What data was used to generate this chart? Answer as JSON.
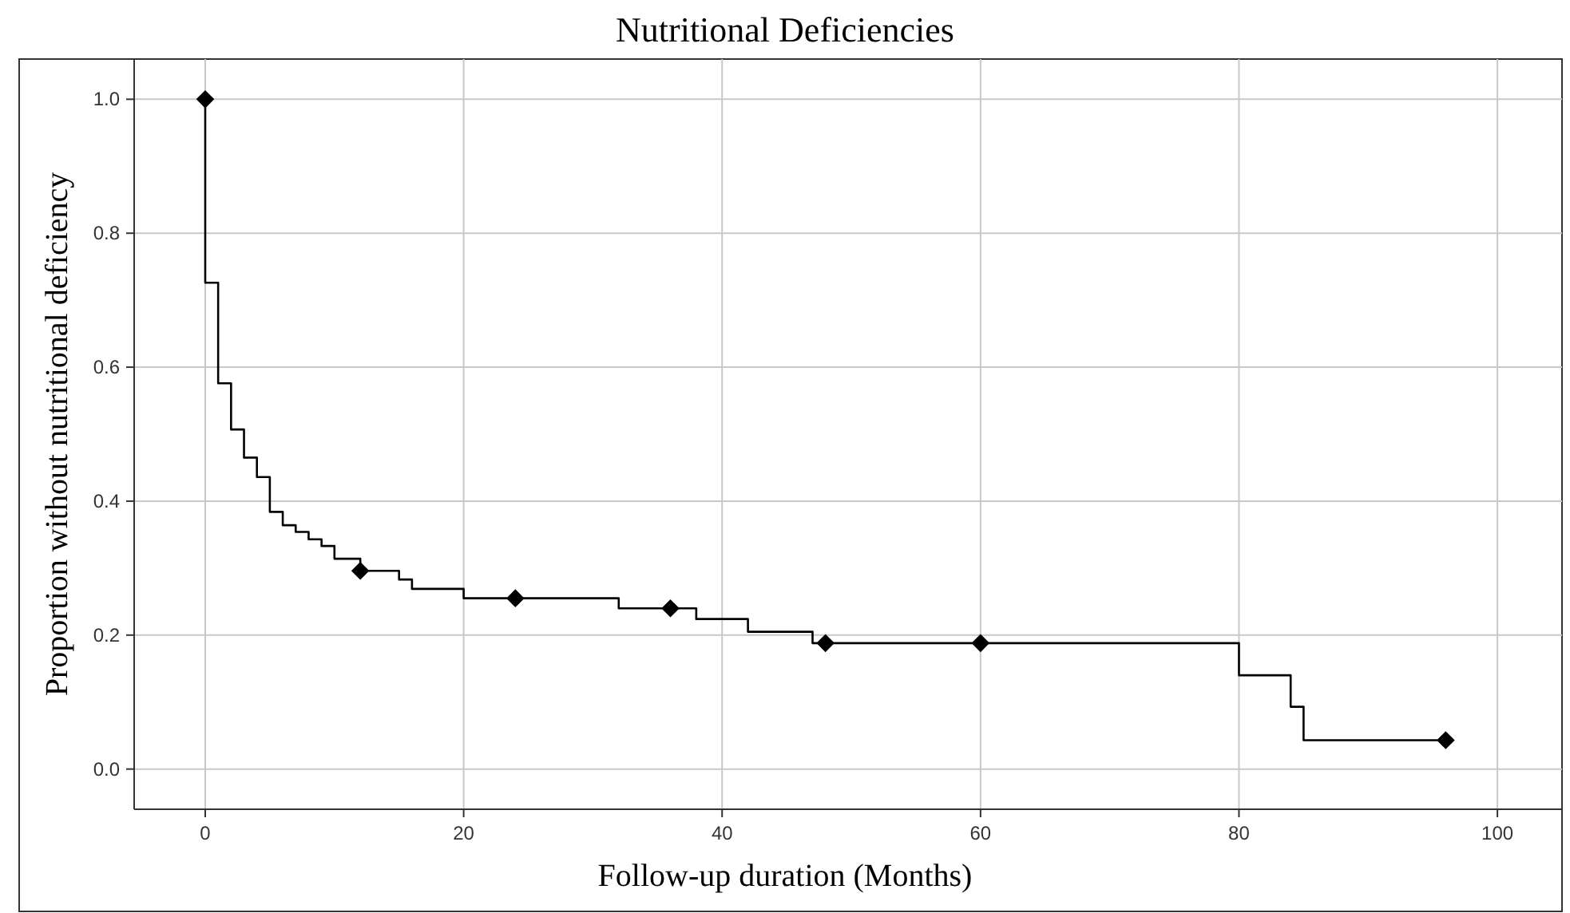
{
  "chart_data": {
    "type": "step",
    "title": "Nutritional Deficiencies",
    "xlabel": "Follow-up duration (Months)",
    "ylabel": "Proportion without nutritional deficiency",
    "xlim": [
      -5.5,
      105
    ],
    "xticks": [
      0,
      20,
      40,
      60,
      80,
      100
    ],
    "ylim": [
      -0.06,
      1.06
    ],
    "yticks": [
      {
        "value": 0,
        "label": "0.0"
      },
      {
        "value": 0.2,
        "label": "0.2"
      },
      {
        "value": 0.4,
        "label": "0.4"
      },
      {
        "value": 0.6,
        "label": "0.6"
      },
      {
        "value": 0.8,
        "label": "0.8"
      },
      {
        "value": 1,
        "label": "1.0"
      }
    ],
    "grid": true,
    "series": [
      {
        "type": "step",
        "color": "#000000",
        "marker": "none",
        "x": [
          0,
          0,
          1,
          2,
          3,
          4,
          5,
          6,
          7,
          8,
          9,
          10,
          12,
          15,
          16,
          20,
          32,
          38,
          42,
          47,
          80,
          84,
          85,
          96
        ],
        "values": [
          1.0,
          0.726,
          0.576,
          0.507,
          0.465,
          0.436,
          0.384,
          0.364,
          0.354,
          0.343,
          0.333,
          0.314,
          0.296,
          0.283,
          0.269,
          0.255,
          0.24,
          0.224,
          0.205,
          0.188,
          0.14,
          0.093,
          0.043,
          0.043
        ]
      },
      {
        "type": "scatter",
        "color": "#000000",
        "marker": "diamond",
        "x": [
          0,
          12,
          24,
          36,
          48,
          60,
          96
        ],
        "values": [
          1.0,
          0.296,
          0.255,
          0.24,
          0.188,
          0.188,
          0.043
        ]
      }
    ]
  }
}
